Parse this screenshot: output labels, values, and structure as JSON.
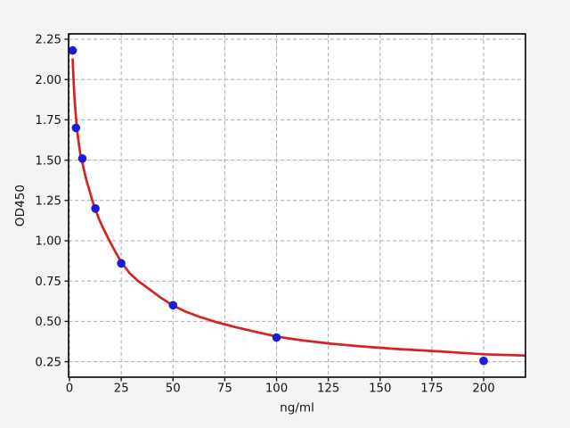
{
  "style": {
    "figure_bg": "#f4f4f4",
    "plot_bg": "#ffffff",
    "grid_color": "#ababab",
    "spine_color": "#000000",
    "tick_color": "#1a1a1a",
    "point_color": "#1c1cd9",
    "curve_color": "#d62222"
  },
  "chart_data": {
    "type": "scatter",
    "title": "",
    "xlabel": "ng/ml",
    "ylabel": "OD450",
    "xlim": [
      -0.43,
      220.2
    ],
    "ylim": [
      0.154,
      2.283
    ],
    "grid": true,
    "legend": false,
    "x_ticks": {
      "values": [
        0,
        25,
        50,
        75,
        100,
        125,
        150,
        175,
        200
      ],
      "labels": [
        "0",
        "25",
        "50",
        "75",
        "100",
        "125",
        "150",
        "175",
        "200"
      ]
    },
    "y_ticks": {
      "values": [
        0.25,
        0.5,
        0.75,
        1.0,
        1.25,
        1.5,
        1.75,
        2.0,
        2.25
      ],
      "labels": [
        "0.25",
        "0.50",
        "0.75",
        "1.00",
        "1.25",
        "1.50",
        "1.75",
        "2.00",
        "2.25"
      ]
    },
    "series": [
      {
        "name": "standard-points",
        "type": "scatter",
        "color": "#1c1cd9",
        "marker_radius": 4.8,
        "x": [
          1.5625,
          3.125,
          6.25,
          12.5,
          25,
          50,
          100,
          200
        ],
        "y": [
          2.18,
          1.7,
          1.51,
          1.2,
          0.86,
          0.6,
          0.4,
          0.255
        ]
      },
      {
        "name": "4pl-fit-curve",
        "type": "line",
        "color": "#d62222",
        "width": 2.7,
        "x": [
          1.56,
          1.75,
          2.0,
          2.3,
          2.65,
          3.05,
          3.5,
          4.0,
          4.6,
          5.3,
          6.25,
          7.2,
          8.3,
          9.6,
          11.0,
          12.5,
          14.4,
          16.6,
          19.1,
          22,
          25,
          29,
          33,
          38,
          44,
          50,
          56,
          63,
          71,
          80,
          90,
          100,
          112,
          126,
          141,
          158,
          177,
          200,
          220.5
        ],
        "y": [
          2.125,
          2.06,
          1.99,
          1.915,
          1.845,
          1.78,
          1.715,
          1.655,
          1.595,
          1.535,
          1.485,
          1.43,
          1.37,
          1.315,
          1.25,
          1.195,
          1.13,
          1.07,
          1.005,
          0.935,
          0.868,
          0.8,
          0.752,
          0.705,
          0.648,
          0.598,
          0.561,
          0.527,
          0.495,
          0.465,
          0.435,
          0.406,
          0.383,
          0.362,
          0.345,
          0.329,
          0.315,
          0.296,
          0.288
        ]
      }
    ]
  }
}
